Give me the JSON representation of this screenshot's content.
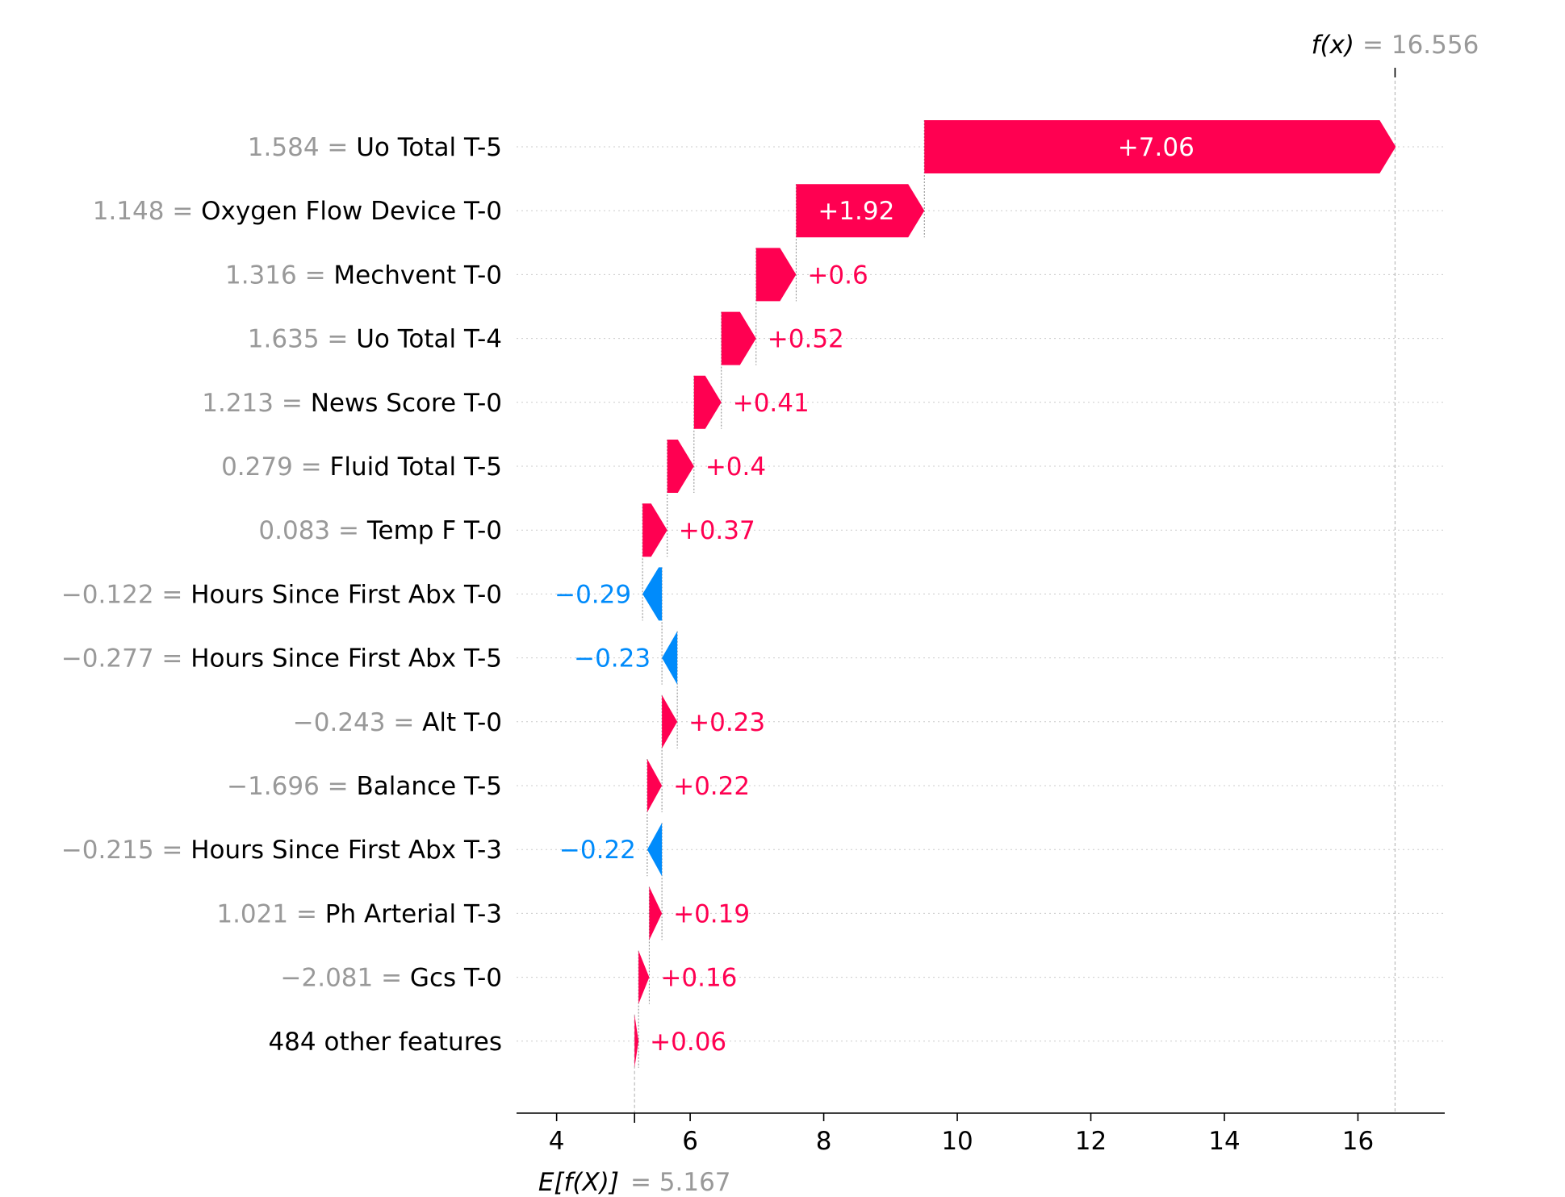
{
  "chart_data": {
    "type": "waterfall",
    "title": "",
    "xlabel": "",
    "ylabel": "",
    "xlim": [
      3.4,
      17.3
    ],
    "xticks": [
      4,
      6,
      8,
      10,
      12,
      14,
      16
    ],
    "x_tick_labels": [
      "4",
      "6",
      "8",
      "10",
      "12",
      "14",
      "16"
    ],
    "base_value": 5.167,
    "base_label": "E[f(X)]",
    "base_value_text": "= 5.167",
    "output_value": 16.556,
    "output_label": "f(x)",
    "output_value_text": "= 16.556",
    "colors": {
      "positive": "#ff0051",
      "negative": "#008bfb",
      "feature_value": "#999999",
      "feature_name": "#000000"
    },
    "features": [
      {
        "value_text": "1.584 =",
        "name": "Uo Total T-5",
        "contribution": 7.06,
        "label": "+7.06"
      },
      {
        "value_text": "1.148 =",
        "name": "Oxygen Flow Device T-0",
        "contribution": 1.92,
        "label": "+1.92"
      },
      {
        "value_text": "1.316 =",
        "name": "Mechvent T-0",
        "contribution": 0.6,
        "label": "+0.6"
      },
      {
        "value_text": "1.635 =",
        "name": "Uo Total T-4",
        "contribution": 0.52,
        "label": "+0.52"
      },
      {
        "value_text": "1.213 =",
        "name": "News Score T-0",
        "contribution": 0.41,
        "label": "+0.41"
      },
      {
        "value_text": "0.279 =",
        "name": "Fluid Total T-5",
        "contribution": 0.4,
        "label": "+0.4"
      },
      {
        "value_text": "0.083 =",
        "name": "Temp F T-0",
        "contribution": 0.37,
        "label": "+0.37"
      },
      {
        "value_text": "−0.122 =",
        "name": "Hours Since First Abx T-0",
        "contribution": -0.29,
        "label": "−0.29"
      },
      {
        "value_text": "−0.277 =",
        "name": "Hours Since First Abx T-5",
        "contribution": -0.23,
        "label": "−0.23"
      },
      {
        "value_text": "−0.243 =",
        "name": "Alt T-0",
        "contribution": 0.23,
        "label": "+0.23"
      },
      {
        "value_text": "−1.696 =",
        "name": "Balance T-5",
        "contribution": 0.22,
        "label": "+0.22"
      },
      {
        "value_text": "−0.215 =",
        "name": "Hours Since First Abx T-3",
        "contribution": -0.22,
        "label": "−0.22"
      },
      {
        "value_text": "1.021 =",
        "name": "Ph Arterial T-3",
        "contribution": 0.19,
        "label": "+0.19"
      },
      {
        "value_text": "−2.081 =",
        "name": "Gcs T-0",
        "contribution": 0.16,
        "label": "+0.16"
      },
      {
        "value_text": "",
        "name": "484 other features",
        "contribution": 0.06,
        "label": "+0.06"
      }
    ]
  }
}
